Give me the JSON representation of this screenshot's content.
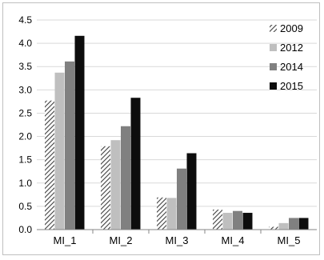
{
  "chart_data": {
    "type": "bar",
    "title": "",
    "xlabel": "",
    "ylabel": "",
    "ylim": [
      0,
      4.5
    ],
    "yticks": [
      "0.0",
      "0.5",
      "1.0",
      "1.5",
      "2.0",
      "2.5",
      "3.0",
      "3.5",
      "4.0",
      "4.5"
    ],
    "categories": [
      "MI_1",
      "MI_2",
      "MI_3",
      "MI_4",
      "MI_5"
    ],
    "grid": "horizontal",
    "legend_position": "top-right",
    "series": [
      {
        "name": "2009",
        "color": "#595959",
        "pattern": "hatched",
        "values": [
          2.77,
          1.79,
          0.69,
          0.43,
          0.06
        ]
      },
      {
        "name": "2012",
        "color": "#bfbfbf",
        "pattern": "solid",
        "values": [
          3.37,
          1.92,
          0.68,
          0.36,
          0.14
        ]
      },
      {
        "name": "2014",
        "color": "#808080",
        "pattern": "solid",
        "values": [
          3.61,
          2.22,
          1.31,
          0.4,
          0.25
        ]
      },
      {
        "name": "2015",
        "color": "#0d0d0d",
        "pattern": "solid",
        "values": [
          4.16,
          2.83,
          1.64,
          0.36,
          0.25
        ]
      }
    ]
  }
}
